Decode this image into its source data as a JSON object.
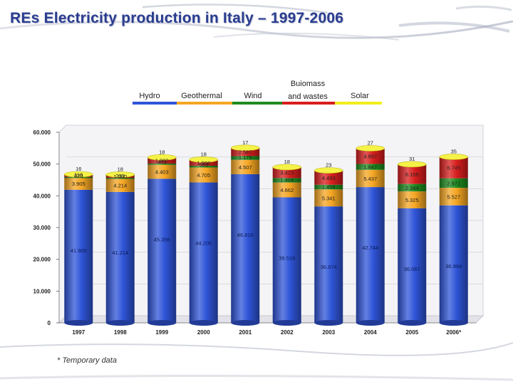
{
  "slide": {
    "title": "REs Electricity production in Italy – 1997-2006",
    "footnote": "* Temporary data"
  },
  "colors": {
    "title": "#2a3d8f",
    "Hydro": "#2f55d8",
    "Geothermal": "#f5a623",
    "Wind": "#1e8c1e",
    "Biomass": "#d81e1e",
    "Solar": "#f2ef1a"
  },
  "chart_data": {
    "type": "bar",
    "stacked": true,
    "style": "3d-cylinder",
    "categories": [
      "1997",
      "1998",
      "1999",
      "2000",
      "2001",
      "2002",
      "2003",
      "2004",
      "2005",
      "2006*"
    ],
    "y_ticks": [
      "0",
      "10.000",
      "20.000",
      "30.000",
      "40.000",
      "50.000",
      "60.000"
    ],
    "ylim": [
      0,
      60000
    ],
    "grid": true,
    "legend_position": "top",
    "legend": [
      {
        "key": "Hydro",
        "lines": [
          "Hydro"
        ]
      },
      {
        "key": "Geothermal",
        "lines": [
          "Geothermal"
        ]
      },
      {
        "key": "Wind",
        "lines": [
          "Wind"
        ]
      },
      {
        "key": "Biomass",
        "lines": [
          "Buiomass",
          "and wastes"
        ]
      },
      {
        "key": "Solar",
        "lines": [
          "Solar"
        ]
      }
    ],
    "series": [
      {
        "key": "Hydro",
        "values": [
          41900,
          41214,
          45356,
          44205,
          46810,
          39519,
          36674,
          42744,
          36067,
          36994
        ]
      },
      {
        "key": "Geothermal",
        "values": [
          3905,
          4214,
          4403,
          4705,
          4507,
          4662,
          5341,
          5437,
          5325,
          5527
        ]
      },
      {
        "key": "Wind",
        "values": [
          118,
          232,
          403,
          563,
          1179,
          1404,
          1458,
          1847,
          2344,
          2971
        ]
      },
      {
        "key": "Biomass",
        "values": [
          820,
          1000,
          1900,
          1906,
          2587,
          3423,
          4493,
          4897,
          6155,
          6745
        ]
      },
      {
        "key": "Solar",
        "values": [
          16,
          18,
          18,
          18,
          17,
          18,
          23,
          27,
          31,
          35
        ]
      }
    ],
    "labels": [
      {
        "Hydro": "41.900",
        "Geothermal": "3.905",
        "Wind": "118",
        "Biomass": "820",
        "Solar": "16"
      },
      {
        "Hydro": "41.214",
        "Geothermal": "4.214",
        "Wind": "232",
        "Biomass": "1.000",
        "Solar": "18"
      },
      {
        "Hydro": "45.356",
        "Geothermal": "4.403",
        "Wind": "403",
        "Biomass": "1.900",
        "Solar": "18"
      },
      {
        "Hydro": "44.205",
        "Geothermal": "4.705",
        "Wind": "563",
        "Biomass": "1.906",
        "Solar": "18"
      },
      {
        "Hydro": "46.810",
        "Geothermal": "4.507",
        "Wind": "1.179",
        "Biomass": "2.587",
        "Solar": "17"
      },
      {
        "Hydro": "39.519",
        "Geothermal": "4.662",
        "Wind": "1.404",
        "Biomass": "3.423",
        "Solar": "18"
      },
      {
        "Hydro": "36.674",
        "Geothermal": "5.341",
        "Wind": "1.458",
        "Biomass": "4.493",
        "Solar": "23"
      },
      {
        "Hydro": "42.744",
        "Geothermal": "5.437",
        "Wind": "1.847",
        "Biomass": "4.897",
        "Solar": "27"
      },
      {
        "Hydro": "36.067",
        "Geothermal": "5.325",
        "Wind": "2.344",
        "Biomass": "6.155",
        "Solar": "31"
      },
      {
        "Hydro": "36.994",
        "Geothermal": "5.527",
        "Wind": "2.971",
        "Biomass": "6.745",
        "Solar": "35"
      }
    ]
  }
}
